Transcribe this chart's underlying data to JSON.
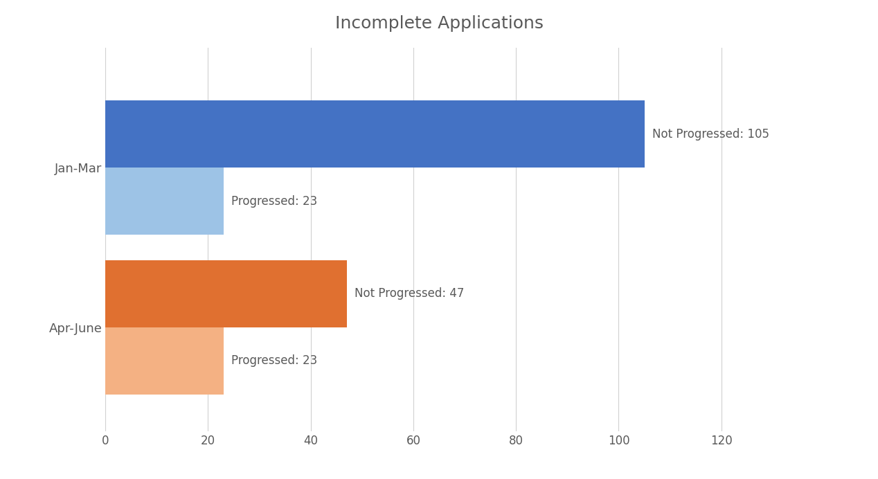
{
  "title": "Incomplete Applications",
  "categories": [
    "Jan-Mar",
    "Apr-June"
  ],
  "not_progressed": [
    105,
    47
  ],
  "progressed": [
    23,
    23
  ],
  "not_progressed_colors": [
    "#4472C4",
    "#E07030"
  ],
  "progressed_colors": [
    "#9DC3E6",
    "#F4B183"
  ],
  "bar_height": 0.42,
  "xlim": [
    0,
    130
  ],
  "xticks": [
    0,
    20,
    40,
    60,
    80,
    100,
    120
  ],
  "label_color": "#595959",
  "title_fontsize": 18,
  "label_fontsize": 12,
  "tick_fontsize": 12,
  "ytick_fontsize": 13,
  "background_color": "#ffffff",
  "grid_color": "#d0d0d0"
}
